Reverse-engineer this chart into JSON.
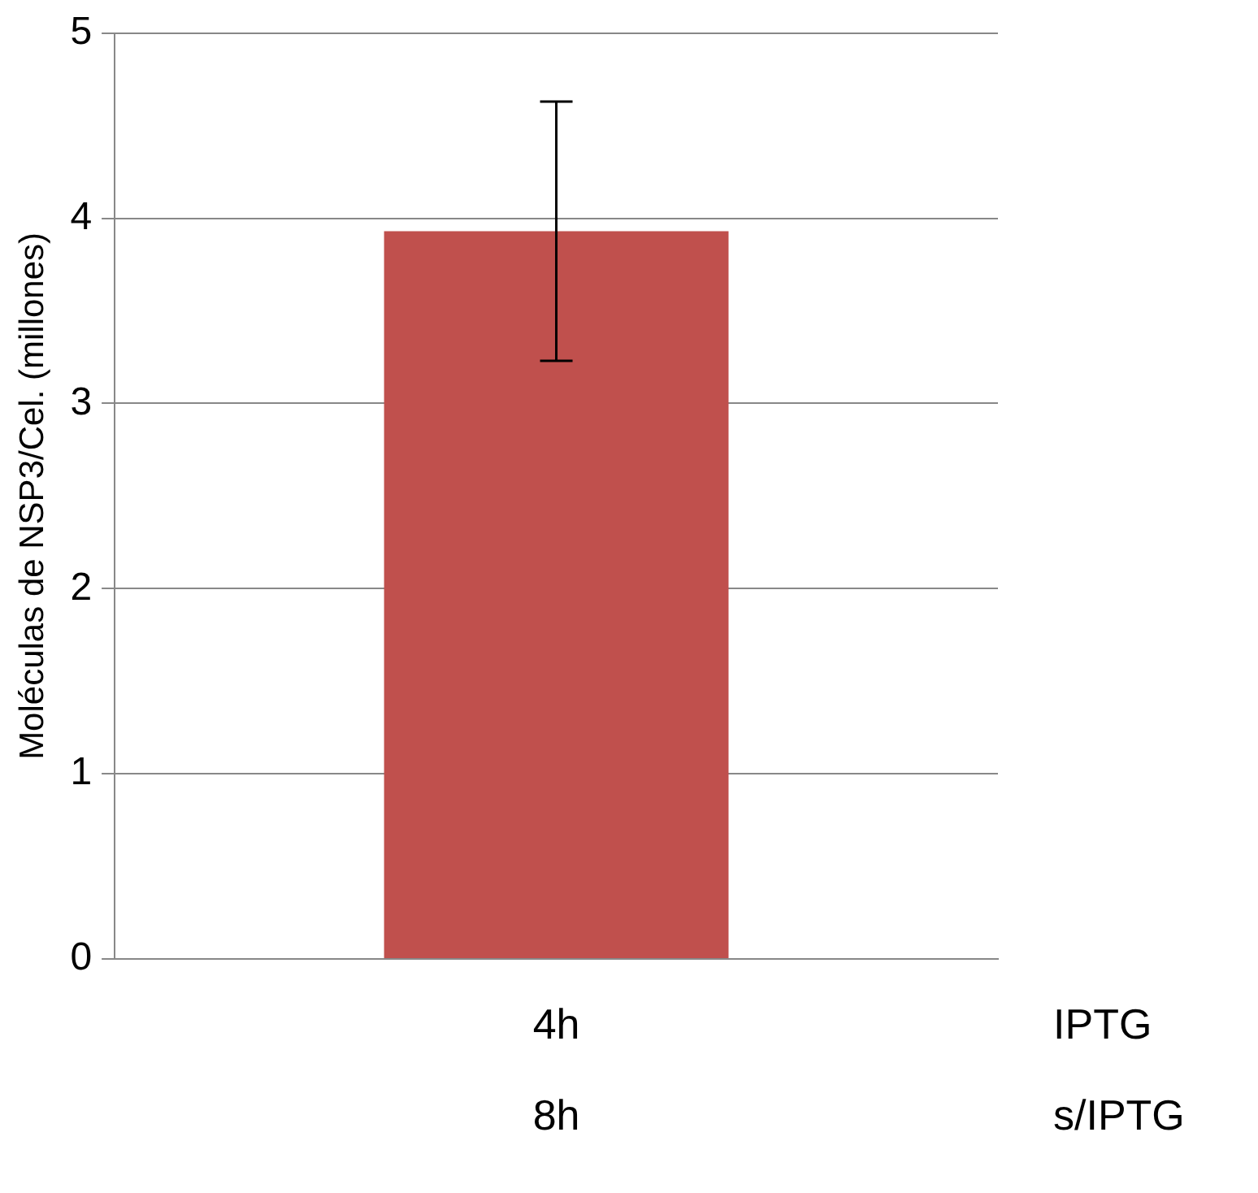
{
  "chart_data": {
    "type": "bar",
    "ylabel": "Moléculas de NSP3/Cel. (millones)",
    "categories": [
      "4h\n8h"
    ],
    "values": [
      3.93
    ],
    "errors": [
      0.7
    ],
    "color": "#c0504d",
    "ylim": [
      0,
      5
    ],
    "yticks": [
      0,
      1,
      2,
      3,
      4,
      5
    ],
    "grid": "y",
    "legend": false,
    "annotations": [
      "IPTG",
      "s/IPTG"
    ]
  }
}
